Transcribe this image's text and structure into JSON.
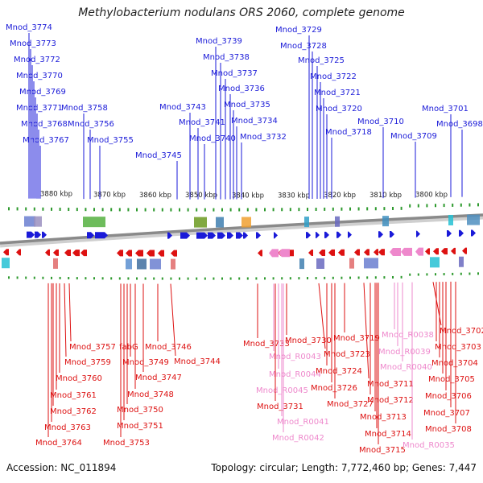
{
  "title": "Methylobacterium nodulans ORS 2060, complete genome",
  "footer": {
    "accession": "Accession: NC_011894",
    "topology": "Topology: circular; Length: 7,772,460 bp; Genes: 7,447"
  },
  "colors": {
    "top_gene": "#1a1ad8",
    "bottom_gene": "#dd1111",
    "rna": "#ee88cc",
    "backbone": "#8a8a8a",
    "tick": "#2e9a2e"
  },
  "scale": {
    "labels": [
      "3880 kbp",
      "3870 kbp",
      "3860 kbp",
      "3850 kbp",
      "3840 kbp",
      "3830 kbp",
      "3820 kbp",
      "3810 kbp",
      "3800 kbp"
    ]
  },
  "top_labels": [
    "Mnod_3774",
    "Mnod_3773",
    "Mnod_3772",
    "Mnod_3770",
    "Mnod_3769",
    "Mnod_3771",
    "Mnod_3768",
    "Mnod_3767",
    "Mnod_3758",
    "Mnod_3756",
    "Mnod_3755",
    "Mnod_3745",
    "Mnod_3743",
    "Mnod_3741",
    "Mnod_3740",
    "Mnod_3739",
    "Mnod_3738",
    "Mnod_3737",
    "Mnod_3736",
    "Mnod_3735",
    "Mnod_3734",
    "Mnod_3732",
    "Mnod_3729",
    "Mnod_3728",
    "Mnod_3725",
    "Mnod_3722",
    "Mnod_3721",
    "Mnod_3720",
    "Mnod_3718",
    "Mnod_3710",
    "Mnod_3709",
    "Mnod_3701",
    "Mnod_3698"
  ],
  "bottom_labels": [
    "Mnod_3757",
    "Mnod_3759",
    "Mnod_3760",
    "Mnod_3761",
    "Mnod_3762",
    "Mnod_3763",
    "Mnod_3764",
    "fabG",
    "Mnod_3749",
    "Mnod_3747",
    "Mnod_3748",
    "Mnod_3750",
    "Mnod_3751",
    "Mnod_3753",
    "Mnod_3746",
    "Mnod_3744",
    "Mnod_3733",
    "Mnod_3730",
    "Mnod_R0043",
    "Mnod_R0044",
    "Mnod_R0045",
    "Mnod_3731",
    "Mnod_R0041",
    "Mnod_R0042",
    "Mnod_3719",
    "Mnod_3723",
    "Mnod_3724",
    "Mnod_3726",
    "Mnod_3727",
    "Mnod_3711",
    "Mnod_3712",
    "Mnod_3713",
    "Mnod_3714",
    "Mnod_3715",
    "Mnod_R0038",
    "Mnod_R0039",
    "Mnod_R0040",
    "Mnod_R0035",
    "Mnod_3702",
    "Mnod_3703",
    "Mnod_3704",
    "Mnod_3705",
    "Mnod_3706",
    "Mnod_3707",
    "Mnod_3708"
  ]
}
